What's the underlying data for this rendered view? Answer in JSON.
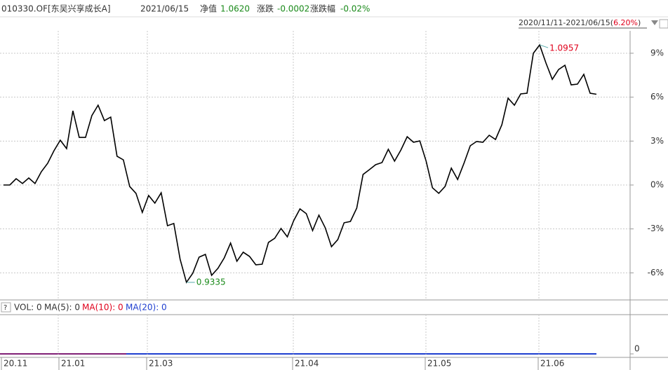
{
  "header": {
    "code": "010330.OF[东吴兴享成长A]",
    "date": "2021/06/15",
    "nav_label": "净值",
    "nav": "1.0620",
    "change_label": "涨跌",
    "change": "-0.0002",
    "pct_label": "涨跌幅",
    "pct": "-0.02%",
    "range_prefix": "2020/11/11-2021/06/15(",
    "range_change": "6.20%",
    "range_suffix": ")"
  },
  "chart_data": {
    "type": "line",
    "color": "#000000",
    "values": [
      0,
      0,
      0.43,
      0.1,
      0.48,
      0.1,
      0.91,
      1.48,
      2.34,
      3.06,
      2.49,
      5.07,
      3.25,
      3.25,
      4.74,
      5.45,
      4.4,
      4.64,
      1.96,
      1.72,
      -0.1,
      -0.57,
      -1.87,
      -0.72,
      -1.24,
      -0.53,
      -2.78,
      -2.63,
      -5.07,
      -6.65,
      -6.03,
      -4.93,
      -4.74,
      -6.17,
      -5.69,
      -4.98,
      -3.97,
      -5.21,
      -4.59,
      -4.88,
      -5.45,
      -5.41,
      -3.92,
      -3.64,
      -2.97,
      -3.54,
      -2.44,
      -1.63,
      -1.96,
      -3.11,
      -2.06,
      -2.92,
      -4.21,
      -3.73,
      -2.58,
      -2.49,
      -1.58,
      0.72,
      1.05,
      1.39,
      1.53,
      2.44,
      1.63,
      2.39,
      3.3,
      2.92,
      3.01,
      1.63,
      -0.19,
      -0.57,
      -0.1,
      1.15,
      0.38,
      1.48,
      2.68,
      2.97,
      2.92,
      3.4,
      3.11,
      4.11,
      5.93,
      5.45,
      6.22,
      6.27,
      9.0,
      9.57,
      8.33,
      7.22,
      7.89,
      8.18,
      6.84,
      6.89,
      7.56,
      6.27,
      6.2
    ],
    "ylim": [
      -7.85,
      10.53
    ],
    "yticks": [
      {
        "value": 9,
        "label": "9%"
      },
      {
        "value": 6,
        "label": "6%"
      },
      {
        "value": 3,
        "label": "3%"
      },
      {
        "value": 0,
        "label": "0%"
      },
      {
        "value": -3,
        "label": "-3%"
      },
      {
        "value": -6,
        "label": "-6%"
      }
    ],
    "xtick_labels": [
      "20.11",
      "21.01",
      "21.03",
      "21.04",
      "21.05",
      "21.06"
    ],
    "annotations": {
      "max": "1.0957",
      "min": "0.9335"
    },
    "grid": true
  },
  "volume": {
    "help": "?",
    "vol": "VOL: 0",
    "ma5": "MA(5): 0",
    "ma10": "MA(10): 0",
    "ma20": "MA(20): 0",
    "yticks": [
      0
    ]
  }
}
